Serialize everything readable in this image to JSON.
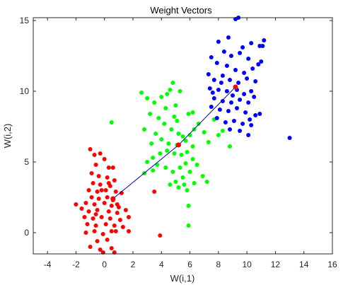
{
  "chart_data": {
    "type": "scatter",
    "title": "Weight Vectors",
    "xlabel": "W(i,1)",
    "ylabel": "W(i,2)",
    "xlim": [
      -5,
      16
    ],
    "ylim": [
      -1.5,
      15.2
    ],
    "xticks": [
      -4,
      -2,
      0,
      2,
      4,
      6,
      8,
      10,
      12,
      14,
      16
    ],
    "yticks": [
      0,
      5,
      10,
      15
    ],
    "grid": false,
    "series": [
      {
        "color": "#ff0000",
        "points": [
          [
            -1,
            5.9
          ],
          [
            -0.7,
            5.5
          ],
          [
            -0.3,
            5.6
          ],
          [
            0,
            5.2
          ],
          [
            -0.6,
            4.8
          ],
          [
            0.3,
            4.6
          ],
          [
            0.6,
            4.6
          ],
          [
            -0.9,
            4.2
          ],
          [
            -0.4,
            4.0
          ],
          [
            0.2,
            3.9
          ],
          [
            0.7,
            3.7
          ],
          [
            -0.8,
            3.5
          ],
          [
            -0.3,
            3.4
          ],
          [
            0.4,
            3.3
          ],
          [
            -1.1,
            3.0
          ],
          [
            -0.5,
            2.9
          ],
          [
            0.1,
            3.0
          ],
          [
            0.8,
            2.9
          ],
          [
            1.2,
            2.8
          ],
          [
            -0.9,
            2.5
          ],
          [
            -0.4,
            2.4
          ],
          [
            0.2,
            2.5
          ],
          [
            0.6,
            2.3
          ],
          [
            -1.3,
            2.1
          ],
          [
            -0.7,
            2.0
          ],
          [
            0,
            2.1
          ],
          [
            0.5,
            1.9
          ],
          [
            1.0,
            1.8
          ],
          [
            -2,
            2.0
          ],
          [
            -1.6,
            1.7
          ],
          [
            -1.1,
            1.5
          ],
          [
            -0.5,
            1.6
          ],
          [
            0.3,
            1.5
          ],
          [
            0.9,
            1.4
          ],
          [
            1.5,
            1.6
          ],
          [
            -1.4,
            1.1
          ],
          [
            -0.8,
            1.0
          ],
          [
            -0.2,
            1.1
          ],
          [
            0.4,
            1.0
          ],
          [
            1.1,
            0.9
          ],
          [
            1.7,
            1.1
          ],
          [
            -1.2,
            0.6
          ],
          [
            -0.6,
            0.5
          ],
          [
            0.1,
            0.6
          ],
          [
            0.7,
            0.5
          ],
          [
            1.3,
            0.4
          ],
          [
            -1.3,
            0.0
          ],
          [
            -0.7,
            0.1
          ],
          [
            -0.1,
            -0.1
          ],
          [
            0.5,
            0.1
          ],
          [
            -0.5,
            -0.6
          ],
          [
            0.2,
            -0.5
          ],
          [
            -0.3,
            -1.2
          ],
          [
            0.5,
            -1.1
          ],
          [
            -1,
            -1.0
          ],
          [
            0.7,
            -1.4
          ],
          [
            -0.1,
            -1.4
          ],
          [
            3.5,
            2.9
          ],
          [
            3.9,
            -0.2
          ],
          [
            1.7,
            0.1
          ],
          [
            0.3,
            3.5
          ],
          [
            -0.2,
            3.0
          ],
          [
            0.9,
            2.0
          ],
          [
            -0.6,
            1.3
          ],
          [
            0.8,
            0.1
          ]
        ]
      },
      {
        "color": "#00ff00",
        "points": [
          [
            0.5,
            7.8
          ],
          [
            2.6,
            9.9
          ],
          [
            3.0,
            9.5
          ],
          [
            3.5,
            9.2
          ],
          [
            4.0,
            9.6
          ],
          [
            4.4,
            9.8
          ],
          [
            4.6,
            10.1
          ],
          [
            4.8,
            10.6
          ],
          [
            5.3,
            10.0
          ],
          [
            5.0,
            9.0
          ],
          [
            4.3,
            8.8
          ],
          [
            3.2,
            8.4
          ],
          [
            3.8,
            8.1
          ],
          [
            4.2,
            7.7
          ],
          [
            4.7,
            7.3
          ],
          [
            5.2,
            7.0
          ],
          [
            5.5,
            6.8
          ],
          [
            3.6,
            7.0
          ],
          [
            2.8,
            7.3
          ],
          [
            3.3,
            6.3
          ],
          [
            4.0,
            6.6
          ],
          [
            4.5,
            6.3
          ],
          [
            5.1,
            6.2
          ],
          [
            5.7,
            6.5
          ],
          [
            6.0,
            6.9
          ],
          [
            6.3,
            7.3
          ],
          [
            6.6,
            7.7
          ],
          [
            7.0,
            7.1
          ],
          [
            6.2,
            6.1
          ],
          [
            5.8,
            5.7
          ],
          [
            5.4,
            5.5
          ],
          [
            4.9,
            5.6
          ],
          [
            4.4,
            5.8
          ],
          [
            3.9,
            5.6
          ],
          [
            3.4,
            5.3
          ],
          [
            3.0,
            5.0
          ],
          [
            3.7,
            4.8
          ],
          [
            4.3,
            4.6
          ],
          [
            4.8,
            4.3
          ],
          [
            5.3,
            4.6
          ],
          [
            5.7,
            4.9
          ],
          [
            6.2,
            5.2
          ],
          [
            6.5,
            4.8
          ],
          [
            6.0,
            4.3
          ],
          [
            5.5,
            3.9
          ],
          [
            5.0,
            3.6
          ],
          [
            4.6,
            3.4
          ],
          [
            5.2,
            3.2
          ],
          [
            5.8,
            3.0
          ],
          [
            6.3,
            3.5
          ],
          [
            6.9,
            4.0
          ],
          [
            7.2,
            3.6
          ],
          [
            5.9,
            1.9
          ],
          [
            5.9,
            0.5
          ],
          [
            5.1,
            7.9
          ],
          [
            5.9,
            8.4
          ],
          [
            6.2,
            8.5
          ],
          [
            7.7,
            8.0
          ],
          [
            7.3,
            6.4
          ],
          [
            8.0,
            6.9
          ],
          [
            8.3,
            7.2
          ],
          [
            8.8,
            6.1
          ],
          [
            2.8,
            4.2
          ],
          [
            4.9,
            8.2
          ],
          [
            3.4,
            4.4
          ],
          [
            5.6,
            3.4
          ]
        ]
      },
      {
        "color": "#0000ff",
        "points": [
          [
            9.2,
            15.1
          ],
          [
            9.4,
            15.2
          ],
          [
            8.0,
            13.5
          ],
          [
            8.7,
            13.8
          ],
          [
            9.7,
            13.1
          ],
          [
            10.3,
            13.4
          ],
          [
            11.2,
            13.6
          ],
          [
            10.9,
            13.2
          ],
          [
            8.4,
            12.8
          ],
          [
            8.9,
            12.5
          ],
          [
            9.5,
            12.7
          ],
          [
            10.1,
            12.3
          ],
          [
            7.5,
            12.4
          ],
          [
            7.9,
            12.0
          ],
          [
            8.6,
            11.8
          ],
          [
            9.2,
            11.5
          ],
          [
            9.8,
            11.3
          ],
          [
            10.4,
            11.6
          ],
          [
            10.8,
            11.9
          ],
          [
            7.3,
            11.2
          ],
          [
            7.7,
            10.8
          ],
          [
            8.2,
            10.6
          ],
          [
            8.8,
            10.8
          ],
          [
            9.4,
            10.6
          ],
          [
            10.0,
            10.9
          ],
          [
            10.6,
            10.7
          ],
          [
            7.4,
            10.2
          ],
          [
            8.0,
            10.1
          ],
          [
            8.6,
            10.0
          ],
          [
            9.3,
            10.1
          ],
          [
            9.8,
            9.8
          ],
          [
            10.3,
            10.0
          ],
          [
            7.7,
            9.5
          ],
          [
            8.3,
            9.3
          ],
          [
            8.9,
            9.2
          ],
          [
            9.5,
            9.4
          ],
          [
            10.1,
            9.2
          ],
          [
            10.5,
            9.6
          ],
          [
            7.5,
            8.9
          ],
          [
            8.1,
            8.7
          ],
          [
            8.7,
            8.6
          ],
          [
            9.3,
            8.8
          ],
          [
            9.9,
            8.5
          ],
          [
            10.6,
            8.3
          ],
          [
            7.9,
            8.1
          ],
          [
            8.5,
            7.8
          ],
          [
            9.1,
            7.9
          ],
          [
            9.7,
            7.7
          ],
          [
            10.3,
            7.6
          ],
          [
            10.9,
            8.4
          ],
          [
            8.8,
            7.3
          ],
          [
            9.5,
            7.2
          ],
          [
            10.1,
            6.9
          ],
          [
            13.0,
            6.7
          ],
          [
            11.1,
            13.2
          ],
          [
            11.0,
            12.1
          ],
          [
            7.6,
            9.9
          ],
          [
            9.0,
            9.7
          ],
          [
            10.2,
            8.0
          ],
          [
            8.3,
            11.1
          ]
        ]
      }
    ],
    "weight_vectors": {
      "color": "#ff0000",
      "line_color": "#0000aa",
      "points": [
        [
          0.6,
          2.4
        ],
        [
          5.2,
          6.2
        ],
        [
          9.2,
          10.3
        ]
      ]
    }
  }
}
